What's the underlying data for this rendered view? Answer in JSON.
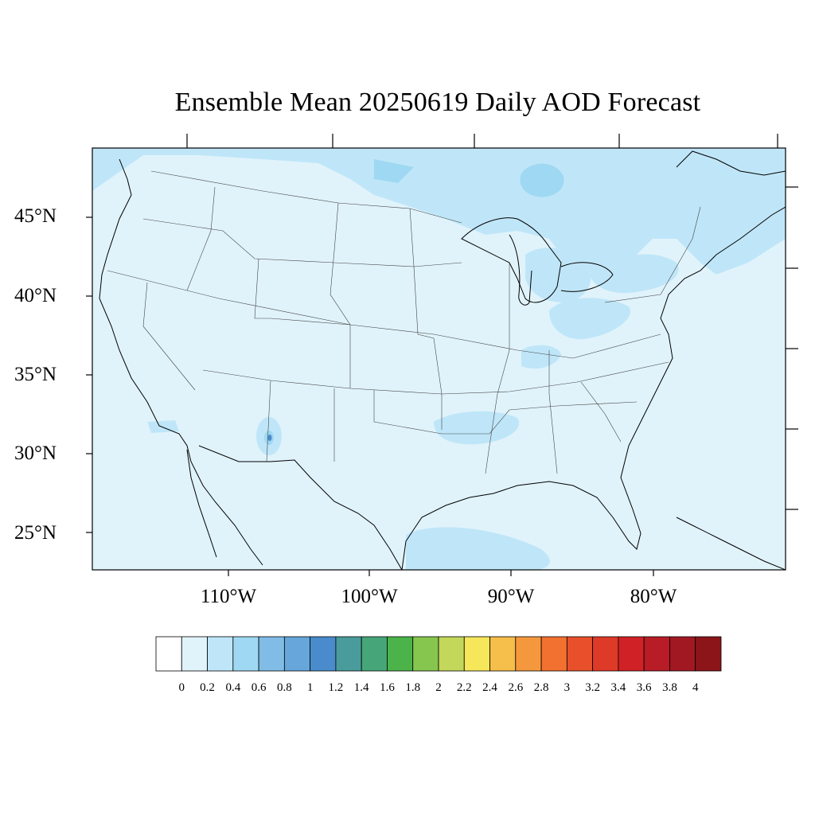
{
  "title": "Ensemble Mean 20250619 Daily AOD Forecast",
  "latitude_labels": [
    "45°N",
    "40°N",
    "35°N",
    "30°N",
    "25°N"
  ],
  "longitude_labels": [
    "110°W",
    "100°W",
    "90°W",
    "80°W"
  ],
  "colorbar": {
    "tick_labels": [
      "0",
      "0.2",
      "0.4",
      "0.6",
      "0.8",
      "1",
      "1.2",
      "1.4",
      "1.6",
      "1.8",
      "2",
      "2.2",
      "2.4",
      "2.6",
      "2.8",
      "3",
      "3.2",
      "3.4",
      "3.6",
      "3.8",
      "4"
    ],
    "colors": [
      "#ffffff",
      "#e0f3fb",
      "#bfe6f8",
      "#9fd8f2",
      "#80bce6",
      "#66a6db",
      "#4a8ccb",
      "#4a9c9c",
      "#46a679",
      "#4bb34a",
      "#86c64f",
      "#c3d75a",
      "#f6e65a",
      "#f6be4a",
      "#f5983d",
      "#f27030",
      "#e8502b",
      "#de3a28",
      "#d02127",
      "#b81c26",
      "#a11823",
      "#8c1519"
    ]
  },
  "map": {
    "region": "CONUS",
    "background_level_color": "#e0f3fb",
    "enhanced_level_color": "#bfe6f8",
    "hotspot_color": "#9fd8f2",
    "hotspot_core_color": "#4a8ccb"
  }
}
